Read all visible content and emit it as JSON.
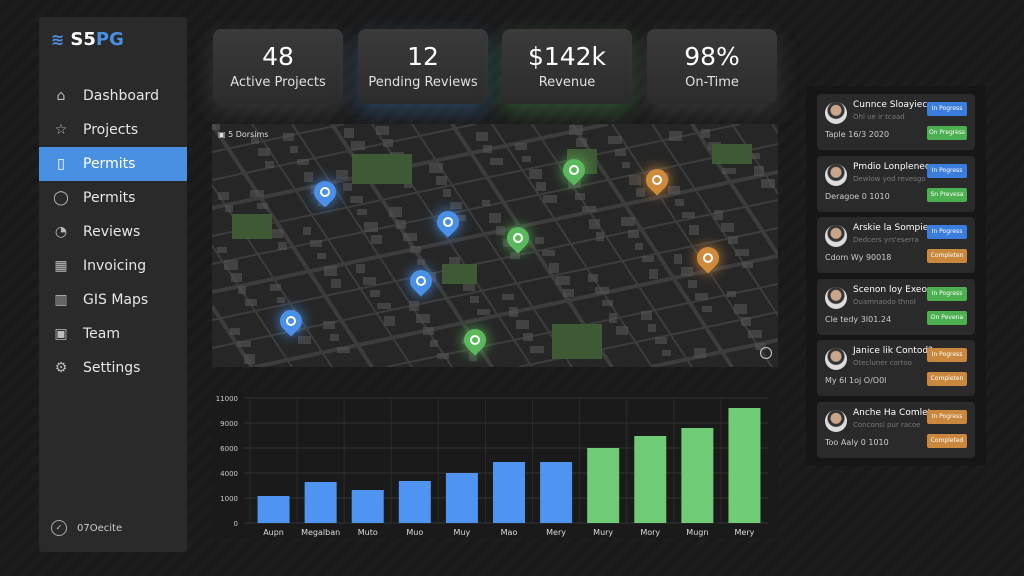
{
  "app": {
    "logo_text_a": "S5",
    "logo_text_b": "PG"
  },
  "sidebar": {
    "items": [
      {
        "label": "Dashboard",
        "icon": "home-icon"
      },
      {
        "label": "Projects",
        "icon": "star-icon"
      },
      {
        "label": "Permits",
        "icon": "document-icon",
        "active": true
      },
      {
        "label": "Permits",
        "icon": "chat-icon"
      },
      {
        "label": "Reviews",
        "icon": "clock-icon"
      },
      {
        "label": "Invoicing",
        "icon": "grid-icon"
      },
      {
        "label": "GIS Maps",
        "icon": "map-icon"
      },
      {
        "label": "Team",
        "icon": "team-icon"
      },
      {
        "label": "Settings",
        "icon": "gear-icon"
      }
    ],
    "footer": "07Oecite"
  },
  "kpis": [
    {
      "value": "48",
      "label": "Active Projects",
      "glow": "#6a6a6a"
    },
    {
      "value": "12",
      "label": "Pending Reviews",
      "glow": "#4a90e2"
    },
    {
      "value": "$142k",
      "label": "Revenue",
      "glow": "#5cb85c"
    },
    {
      "value": "98%",
      "label": "On-Time",
      "glow": "#6a6a6a"
    }
  ],
  "map": {
    "label": "5 Dorsims",
    "pins": [
      {
        "color": "blue"
      },
      {
        "color": "blue"
      },
      {
        "color": "blue"
      },
      {
        "color": "blue"
      },
      {
        "color": "green"
      },
      {
        "color": "green"
      },
      {
        "color": "green"
      },
      {
        "color": "orange"
      },
      {
        "color": "orange"
      }
    ]
  },
  "chart_data": {
    "type": "bar",
    "categories": [
      "Aupn",
      "Megalban",
      "Muto",
      "Muo",
      "Muy",
      "Mao",
      "Mery",
      "Mury",
      "Mory",
      "Mugn",
      "Mery"
    ],
    "values": [
      1240,
      2920,
      1960,
      3040,
      4000,
      4880,
      4880,
      6000,
      7440,
      8400,
      10200
    ],
    "colors": [
      "#4f94f0",
      "#4f94f0",
      "#4f94f0",
      "#4f94f0",
      "#4f94f0",
      "#4f94f0",
      "#4f94f0",
      "#6fcb76",
      "#6fcb76",
      "#6fcb76",
      "#6fcb76"
    ],
    "yticks": [
      0,
      1000,
      4000,
      6000,
      9000,
      11000
    ],
    "ytick_labels": [
      "0",
      "1000",
      "4000",
      "6000",
      "9000",
      "11000"
    ],
    "grid": true
  },
  "activity": [
    {
      "name": "Cunnce Sloayieces",
      "sub": "Ohl ue ir tcaad",
      "date": "Taple 16/3 2020",
      "badges": [
        {
          "label": "In Pogress",
          "color": "#3b7ddd"
        },
        {
          "label": "On Pregress",
          "color": "#4caf50"
        }
      ]
    },
    {
      "name": "Pmdio Lonplenec",
      "sub": "Dewlow yod revesgo",
      "date": "Deragoe 0 1010",
      "badges": [
        {
          "label": "In Pogress",
          "color": "#3b7ddd"
        },
        {
          "label": "Sn Prevesa",
          "color": "#4caf50"
        }
      ]
    },
    {
      "name": "Arskie la Sompiera",
      "sub": "Dedcers yrs'eserra",
      "date": "Cdom Wy 90018",
      "badges": [
        {
          "label": "In Pogress",
          "color": "#3b7ddd"
        },
        {
          "label": "Completen",
          "color": "#c9883e"
        }
      ]
    },
    {
      "name": "Scenon loy Exeor",
      "sub": "Ouamnaodo thnol",
      "date": "Cle tedy 3I01.24",
      "badges": [
        {
          "label": "In Pogress",
          "color": "#4caf50"
        },
        {
          "label": "On Pevena",
          "color": "#4caf50"
        }
      ]
    },
    {
      "name": "Janice lik Contod?",
      "sub": "Otecluner cortoo",
      "date": "My 6l 1oj O/O0l",
      "badges": [
        {
          "label": "In Pogress",
          "color": "#c9883e"
        },
        {
          "label": "Completen",
          "color": "#c9883e"
        }
      ]
    },
    {
      "name": "Anche Ha Comlet",
      "sub": "Conconsi pur racoe",
      "date": "Too Aaly 0 1010",
      "badges": [
        {
          "label": "In Pogress",
          "color": "#c9883e"
        },
        {
          "label": "Completed",
          "color": "#c9883e"
        }
      ]
    }
  ]
}
